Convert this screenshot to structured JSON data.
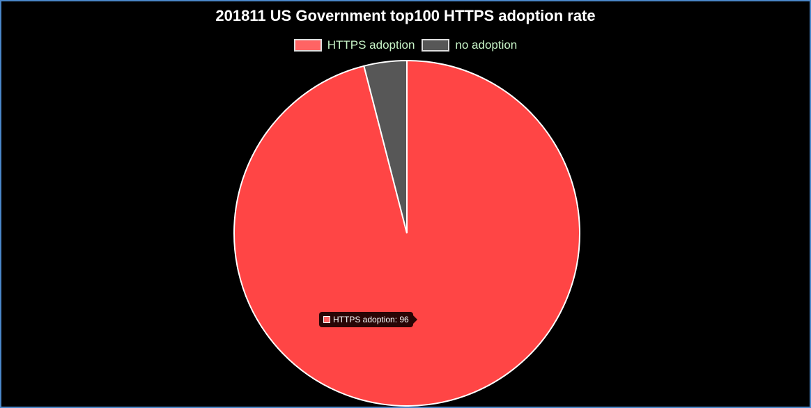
{
  "chart_data": {
    "type": "pie",
    "title": "201811 US Government top100 HTTPS adoption rate",
    "categories": [
      "HTTPS adoption",
      "no adoption"
    ],
    "values": [
      96,
      4
    ],
    "colors": [
      "#ff4545",
      "#575757"
    ],
    "legend_colors": [
      "#ff6464",
      "#575757"
    ],
    "border_color": "#ffffff",
    "legend_position": "top",
    "tooltip": {
      "label": "HTTPS adoption: 96",
      "color": "#ff6464"
    }
  }
}
